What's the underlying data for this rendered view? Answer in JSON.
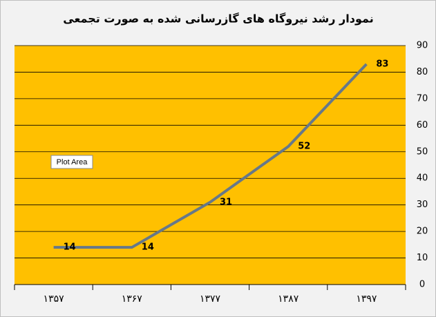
{
  "chart_data": {
    "type": "line",
    "title": "نمودار رشد نیروگاه های گازرسانی شده به صورت تجمعی",
    "categories": [
      "۱۳۵۷",
      "۱۳۶۷",
      "۱۳۷۷",
      "۱۳۸۷",
      "۱۳۹۷"
    ],
    "series": [
      {
        "values": [
          14,
          14,
          31,
          52,
          83
        ],
        "color": "#66788a"
      }
    ],
    "ylim": [
      0,
      90
    ],
    "yticks": [
      0,
      10,
      20,
      30,
      40,
      50,
      60,
      70,
      80,
      90
    ],
    "grid": true,
    "y_axis_side": "right",
    "plot_background": "#ffc000",
    "annotation": "Plot Area"
  }
}
